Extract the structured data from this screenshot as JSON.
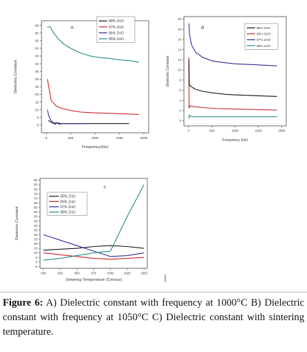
{
  "caption": {
    "label": "Figure 6:",
    "text": "A) Dielectric constant with frequency at 1000°C B) Dielectric constant with frequency at 1050°C C) Dielectric constant with sintering temperature."
  },
  "chart_data": [
    {
      "type": "line",
      "panel_label": "A",
      "xlabel": "Frequency(Hz)",
      "ylabel": "Dielectric Constant",
      "xlim": [
        -100,
        2100
      ],
      "ylim": [
        -5,
        68
      ],
      "xticks": [
        0,
        500,
        1000,
        1500,
        2000
      ],
      "yticks": [
        0,
        5,
        10,
        15,
        20,
        25,
        30,
        35,
        40,
        45,
        50,
        55,
        60,
        65
      ],
      "legend_position": "top-right",
      "legend_order": [
        0,
        1,
        2,
        3
      ],
      "series": [
        {
          "name": "98% ZnO",
          "color": "#111111",
          "points": [
            [
              40,
              3
            ],
            [
              90,
              2
            ],
            [
              150,
              1
            ],
            [
              200,
              1.6
            ],
            [
              300,
              1
            ],
            [
              500,
              1
            ],
            [
              1000,
              1
            ],
            [
              1500,
              1
            ],
            [
              1700,
              1
            ]
          ]
        },
        {
          "name": "97% ZnO",
          "color": "#cc2222",
          "points": [
            [
              20,
              30
            ],
            [
              60,
              23
            ],
            [
              100,
              16
            ],
            [
              200,
              12.5
            ],
            [
              300,
              11
            ],
            [
              500,
              9.5
            ],
            [
              700,
              8.5
            ],
            [
              1000,
              8
            ],
            [
              1500,
              7.5
            ],
            [
              1900,
              7
            ]
          ]
        },
        {
          "name": "96% ZnO",
          "color": "#2a2a99",
          "points": [
            [
              20,
              10
            ],
            [
              50,
              6
            ],
            [
              90,
              3
            ],
            [
              130,
              2
            ],
            [
              180,
              0.5
            ],
            [
              220,
              1.5
            ],
            [
              260,
              0.5
            ],
            [
              300,
              1
            ],
            [
              500,
              1
            ],
            [
              800,
              1
            ]
          ]
        },
        {
          "name": "95% ZnO",
          "color": "#1f8a83",
          "points": [
            [
              20,
              64
            ],
            [
              80,
              64
            ],
            [
              150,
              60
            ],
            [
              250,
              56
            ],
            [
              350,
              53
            ],
            [
              500,
              50
            ],
            [
              700,
              47
            ],
            [
              900,
              45
            ],
            [
              1100,
              44
            ],
            [
              1300,
              43.5
            ],
            [
              1500,
              42.5
            ],
            [
              1700,
              42
            ],
            [
              1900,
              41
            ]
          ]
        }
      ]
    },
    {
      "type": "line",
      "panel_label": "B",
      "xlabel": "Frequency (Hz)",
      "ylabel": "Dielectric Constant",
      "xlim": [
        -100,
        2100
      ],
      "ylim": [
        -1,
        20.5
      ],
      "xticks": [
        0,
        500,
        1000,
        1500,
        2000
      ],
      "yticks": [
        0,
        2,
        4,
        6,
        8,
        10,
        12,
        14,
        16,
        18,
        20
      ],
      "legend_position": "top-right",
      "legend_order": [
        3,
        2,
        1,
        0
      ],
      "series": [
        {
          "name": "98% ZnO",
          "color": "#1f8a83",
          "points": [
            [
              5,
              0.4
            ],
            [
              15,
              1.1
            ],
            [
              40,
              0.9
            ],
            [
              100,
              0.8
            ],
            [
              500,
              0.8
            ],
            [
              1000,
              0.8
            ],
            [
              1500,
              0.8
            ],
            [
              1900,
              0.8
            ]
          ]
        },
        {
          "name": "97% ZnO",
          "color": "#2a2a99",
          "points": [
            [
              5,
              19.2
            ],
            [
              20,
              17
            ],
            [
              60,
              15
            ],
            [
              150,
              13.5
            ],
            [
              300,
              12.5
            ],
            [
              500,
              11.8
            ],
            [
              700,
              11.5
            ],
            [
              1000,
              11.2
            ],
            [
              1500,
              11
            ],
            [
              1900,
              10.8
            ]
          ]
        },
        {
          "name": "96% ZnO",
          "color": "#cc2222",
          "points": [
            [
              5,
              12.5
            ],
            [
              10,
              2.5
            ],
            [
              30,
              2.9
            ],
            [
              100,
              2.8
            ],
            [
              300,
              2.6
            ],
            [
              600,
              2.4
            ],
            [
              1000,
              2.3
            ],
            [
              1500,
              2.2
            ],
            [
              1900,
              2.1
            ]
          ]
        },
        {
          "name": "95% ZnO",
          "color": "#111111",
          "points": [
            [
              5,
              12
            ],
            [
              15,
              7.2
            ],
            [
              40,
              6.8
            ],
            [
              150,
              6.2
            ],
            [
              300,
              5.8
            ],
            [
              500,
              5.5
            ],
            [
              800,
              5.2
            ],
            [
              1000,
              5.1
            ],
            [
              1500,
              4.9
            ],
            [
              1900,
              4.8
            ]
          ]
        }
      ]
    },
    {
      "type": "line",
      "panel_label": "c",
      "xlabel": "Sintering Temperature (Celcius)",
      "ylabel": "Dielectric Constant",
      "xlim": [
        895,
        1055
      ],
      "ylim": [
        -7,
        92
      ],
      "xticks": [
        900,
        925,
        950,
        975,
        1000,
        1025,
        1050
      ],
      "yticks": [
        -5,
        0,
        5,
        10,
        15,
        20,
        25,
        30,
        35,
        40,
        45,
        50,
        55,
        60,
        65,
        70,
        75,
        80,
        85,
        90
      ],
      "legend_position": "upper-left",
      "legend_order": [
        0,
        1,
        2,
        3
      ],
      "series": [
        {
          "name": "95% ZnO",
          "color": "#111111",
          "points": [
            [
              900,
              13
            ],
            [
              950,
              15
            ],
            [
              975,
              17
            ],
            [
              1000,
              18
            ],
            [
              1025,
              17
            ],
            [
              1050,
              15
            ]
          ]
        },
        {
          "name": "96% ZnO",
          "color": "#cc2222",
          "points": [
            [
              900,
              10
            ],
            [
              925,
              8
            ],
            [
              950,
              6
            ],
            [
              975,
              4
            ],
            [
              1000,
              3
            ],
            [
              1025,
              4
            ],
            [
              1050,
              5
            ]
          ]
        },
        {
          "name": "97% ZnO",
          "color": "#2a2a99",
          "points": [
            [
              900,
              30
            ],
            [
              925,
              24
            ],
            [
              950,
              18
            ],
            [
              975,
              12
            ],
            [
              1000,
              6
            ],
            [
              1025,
              7
            ],
            [
              1050,
              10
            ]
          ]
        },
        {
          "name": "98% ZnO",
          "color": "#1f8a83",
          "points": [
            [
              900,
              2
            ],
            [
              925,
              4
            ],
            [
              950,
              7
            ],
            [
              975,
              10
            ],
            [
              1000,
              12
            ],
            [
              1025,
              50
            ],
            [
              1050,
              85
            ]
          ]
        }
      ]
    }
  ]
}
